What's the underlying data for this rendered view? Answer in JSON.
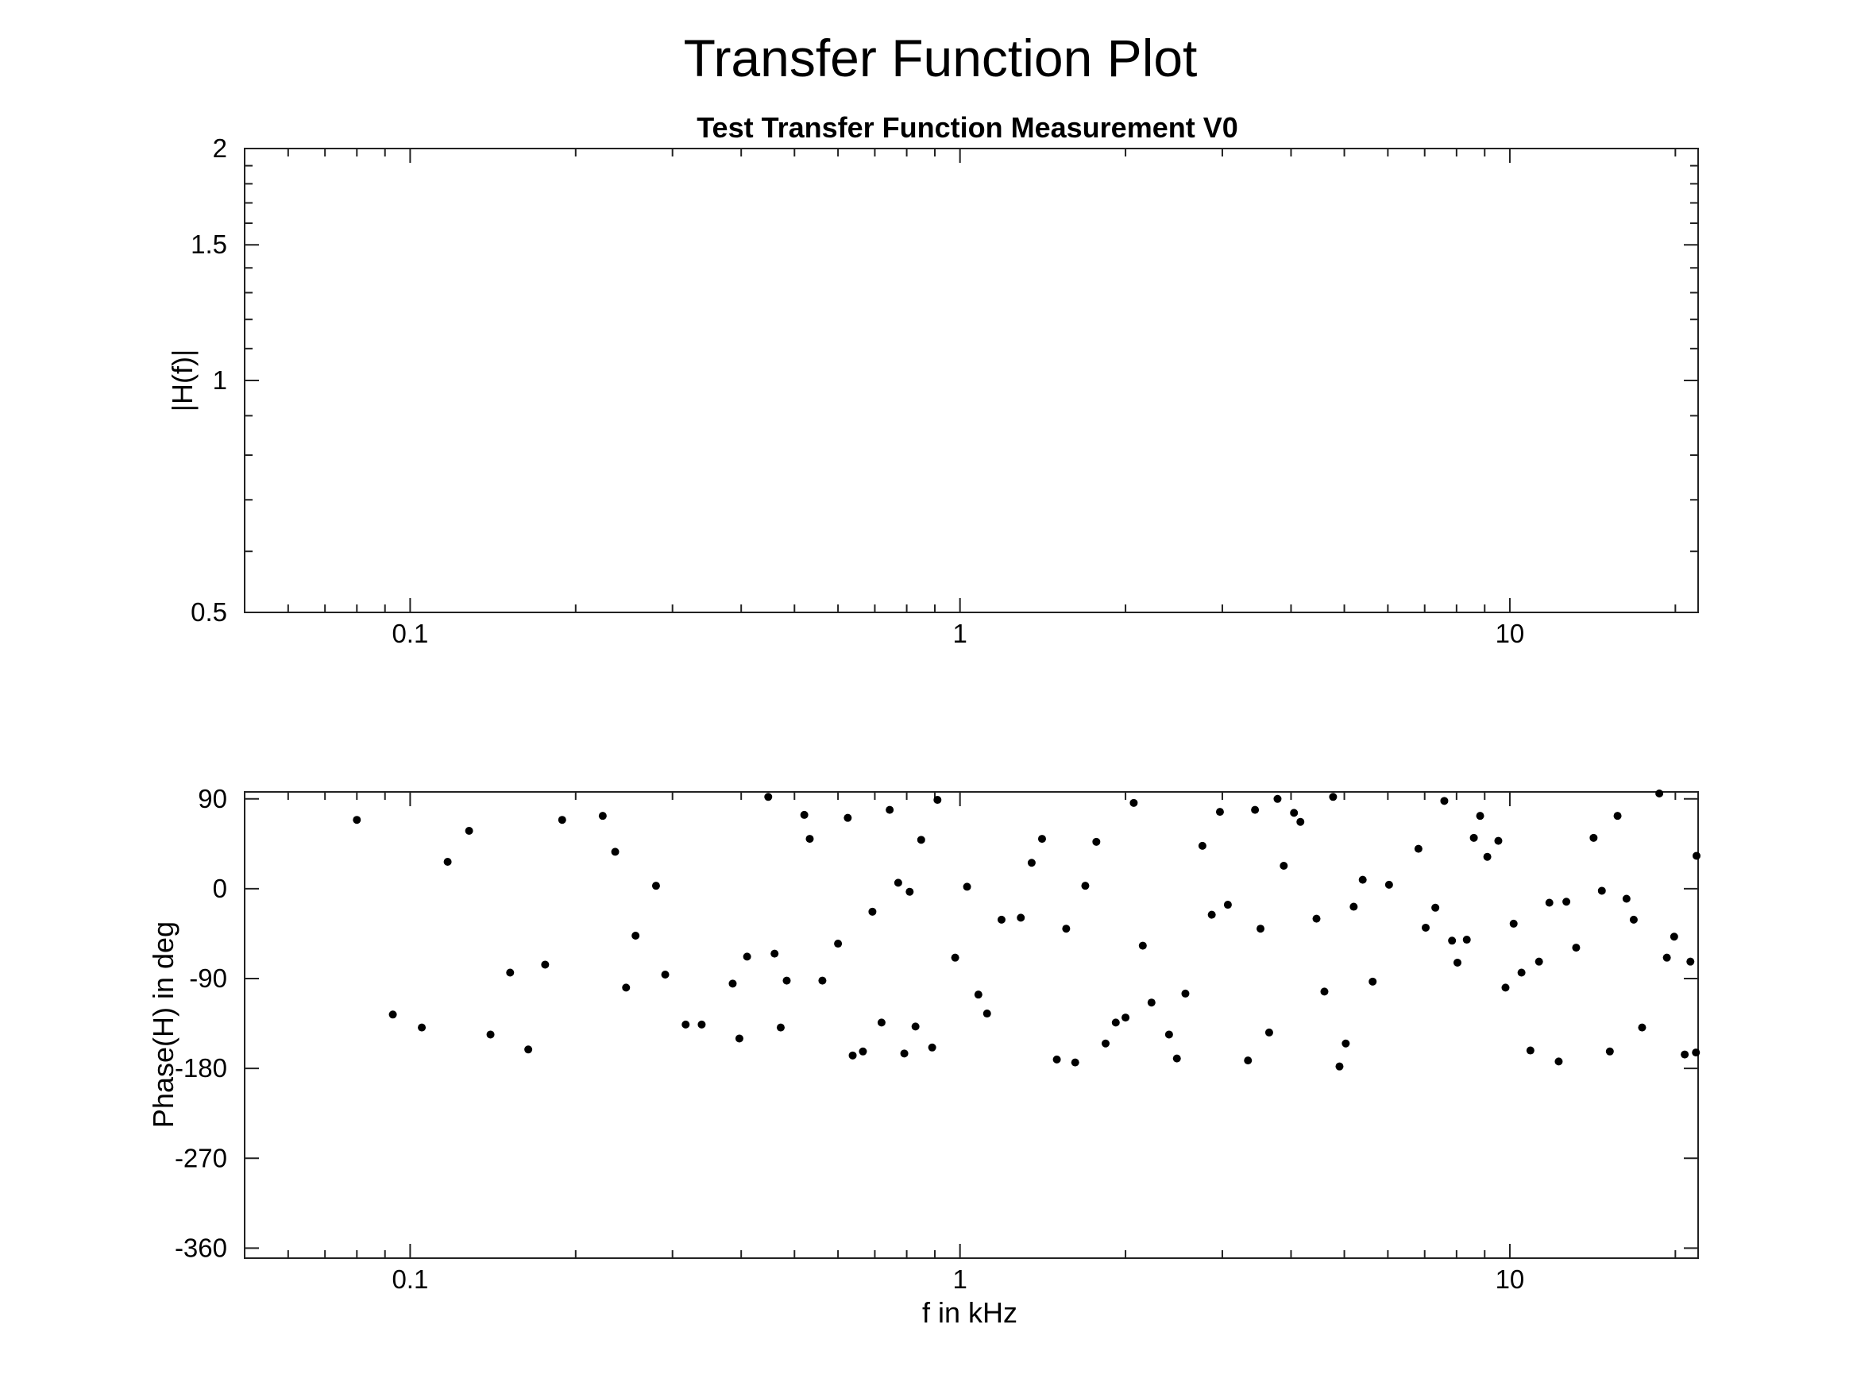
{
  "figure": {
    "title": "Transfer Function Plot"
  },
  "chart_data": [
    {
      "type": "line",
      "title": "Test Transfer Function Measurement V0",
      "xlabel": "",
      "ylabel": "|H(f)|",
      "xscale": "log",
      "yscale": "log",
      "xlim": [
        0.05,
        22
      ],
      "ylim": [
        0.5,
        2
      ],
      "xticks": [
        0.1,
        1,
        10
      ],
      "xtick_labels": [
        "0.1",
        "1",
        "10"
      ],
      "yticks": [
        0.5,
        1,
        1.5,
        2
      ],
      "ytick_labels": [
        "0.5",
        "1",
        "1.5",
        "2"
      ],
      "grid": false,
      "series": []
    },
    {
      "type": "scatter",
      "title": "",
      "xlabel": "f in kHz",
      "ylabel": "Phase(H) in deg",
      "xscale": "log",
      "yscale": "linear",
      "xlim": [
        0.05,
        22
      ],
      "ylim": [
        -370,
        97
      ],
      "xticks": [
        0.1,
        1,
        10
      ],
      "xtick_labels": [
        "0.1",
        "1",
        "10"
      ],
      "yticks": [
        90,
        0,
        -90,
        -180,
        -270,
        -360
      ],
      "ytick_labels": [
        "90",
        "0",
        "-90",
        "-180",
        "-270",
        "-360"
      ],
      "grid": false,
      "series": [
        {
          "points": [
            [
              0.08,
              69
            ],
            [
              0.093,
              -126
            ],
            [
              0.105,
              -139
            ],
            [
              0.117,
              27
            ],
            [
              0.128,
              58
            ],
            [
              0.14,
              -146
            ],
            [
              0.152,
              -84
            ],
            [
              0.164,
              -161
            ],
            [
              0.176,
              -76
            ],
            [
              0.189,
              69
            ],
            [
              0.224,
              73
            ],
            [
              0.236,
              37
            ],
            [
              0.247,
              -99
            ],
            [
              0.257,
              -47
            ],
            [
              0.28,
              3
            ],
            [
              0.291,
              -86
            ],
            [
              0.317,
              -136
            ],
            [
              0.339,
              -136
            ],
            [
              0.386,
              -95
            ],
            [
              0.397,
              -150
            ],
            [
              0.41,
              -68
            ],
            [
              0.448,
              92
            ],
            [
              0.46,
              -65
            ],
            [
              0.472,
              -139
            ],
            [
              0.484,
              -92
            ],
            [
              0.521,
              74
            ],
            [
              0.533,
              50
            ],
            [
              0.562,
              -92
            ],
            [
              0.6,
              -55
            ],
            [
              0.625,
              71
            ],
            [
              0.638,
              -167
            ],
            [
              0.666,
              -163
            ],
            [
              0.693,
              -23
            ],
            [
              0.72,
              -134
            ],
            [
              0.745,
              79
            ],
            [
              0.772,
              6
            ],
            [
              0.792,
              -165
            ],
            [
              0.81,
              -3
            ],
            [
              0.83,
              -138
            ],
            [
              0.85,
              49
            ],
            [
              0.89,
              -159
            ],
            [
              0.91,
              89
            ],
            [
              0.98,
              -69
            ],
            [
              1.03,
              2
            ],
            [
              1.08,
              -106
            ],
            [
              1.12,
              -125
            ],
            [
              1.19,
              -31
            ],
            [
              1.29,
              -29
            ],
            [
              1.35,
              26
            ],
            [
              1.41,
              50
            ],
            [
              1.5,
              -171
            ],
            [
              1.56,
              -40
            ],
            [
              1.62,
              -174
            ],
            [
              1.69,
              3
            ],
            [
              1.77,
              47
            ],
            [
              1.84,
              -155
            ],
            [
              1.92,
              -134
            ],
            [
              2.0,
              -129
            ],
            [
              2.07,
              86
            ],
            [
              2.15,
              -57
            ],
            [
              2.23,
              -114
            ],
            [
              2.4,
              -146
            ],
            [
              2.48,
              -170
            ],
            [
              2.57,
              -105
            ],
            [
              2.76,
              43
            ],
            [
              2.87,
              -26
            ],
            [
              2.97,
              77
            ],
            [
              3.07,
              -16
            ],
            [
              3.34,
              -172
            ],
            [
              3.44,
              79
            ],
            [
              3.52,
              -40
            ],
            [
              3.65,
              -144
            ],
            [
              3.78,
              90
            ],
            [
              3.88,
              23
            ],
            [
              4.05,
              76
            ],
            [
              4.16,
              67
            ],
            [
              4.45,
              -30
            ],
            [
              4.6,
              -103
            ],
            [
              4.77,
              92
            ],
            [
              4.9,
              -178
            ],
            [
              5.03,
              -155
            ],
            [
              5.2,
              -18
            ],
            [
              5.4,
              9
            ],
            [
              5.63,
              -93
            ],
            [
              6.03,
              4
            ],
            [
              6.82,
              40
            ],
            [
              7.03,
              -39
            ],
            [
              7.32,
              -19
            ],
            [
              7.6,
              88
            ],
            [
              7.85,
              -52
            ],
            [
              8.03,
              -74
            ],
            [
              8.35,
              -51
            ],
            [
              8.6,
              51
            ],
            [
              8.83,
              73
            ],
            [
              9.1,
              32
            ],
            [
              9.53,
              48
            ],
            [
              9.82,
              -99
            ],
            [
              10.16,
              -35
            ],
            [
              10.5,
              -84
            ],
            [
              10.9,
              -162
            ],
            [
              11.3,
              -73
            ],
            [
              11.8,
              -14
            ],
            [
              12.27,
              -173
            ],
            [
              12.67,
              -13
            ],
            [
              13.2,
              -59
            ],
            [
              14.2,
              51
            ],
            [
              14.7,
              -2
            ],
            [
              15.2,
              -163
            ],
            [
              15.7,
              73
            ],
            [
              16.3,
              -10
            ],
            [
              16.8,
              -31
            ],
            [
              17.4,
              -139
            ],
            [
              18.7,
              97
            ],
            [
              19.3,
              -69
            ],
            [
              19.9,
              -48
            ],
            [
              20.8,
              -166
            ],
            [
              21.3,
              -73
            ],
            [
              21.8,
              -164
            ],
            [
              22.5,
              33
            ]
          ]
        }
      ]
    }
  ]
}
